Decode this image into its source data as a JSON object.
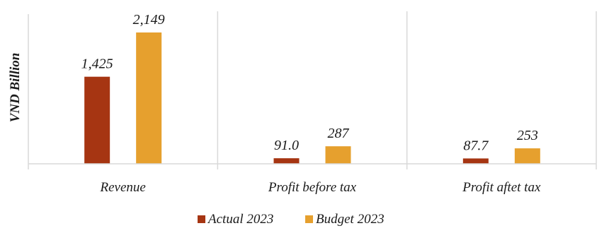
{
  "chart_data": {
    "type": "bar",
    "ylabel": "VND Billion",
    "categories": [
      "Revenue",
      "Profit before tax",
      "Profit aftet tax"
    ],
    "series": [
      {
        "name": "Actual 2023",
        "color": "#a63512",
        "values": [
          1425,
          91.0,
          87.7
        ],
        "labels": [
          "1,425",
          "91.0",
          "87.7"
        ]
      },
      {
        "name": "Budget 2023",
        "color": "#e6a02e",
        "values": [
          2149,
          287,
          253
        ],
        "labels": [
          "2,149",
          "287",
          "253"
        ]
      }
    ],
    "ylim": [
      0,
      2149
    ],
    "grid": false,
    "legend": "bottom"
  }
}
